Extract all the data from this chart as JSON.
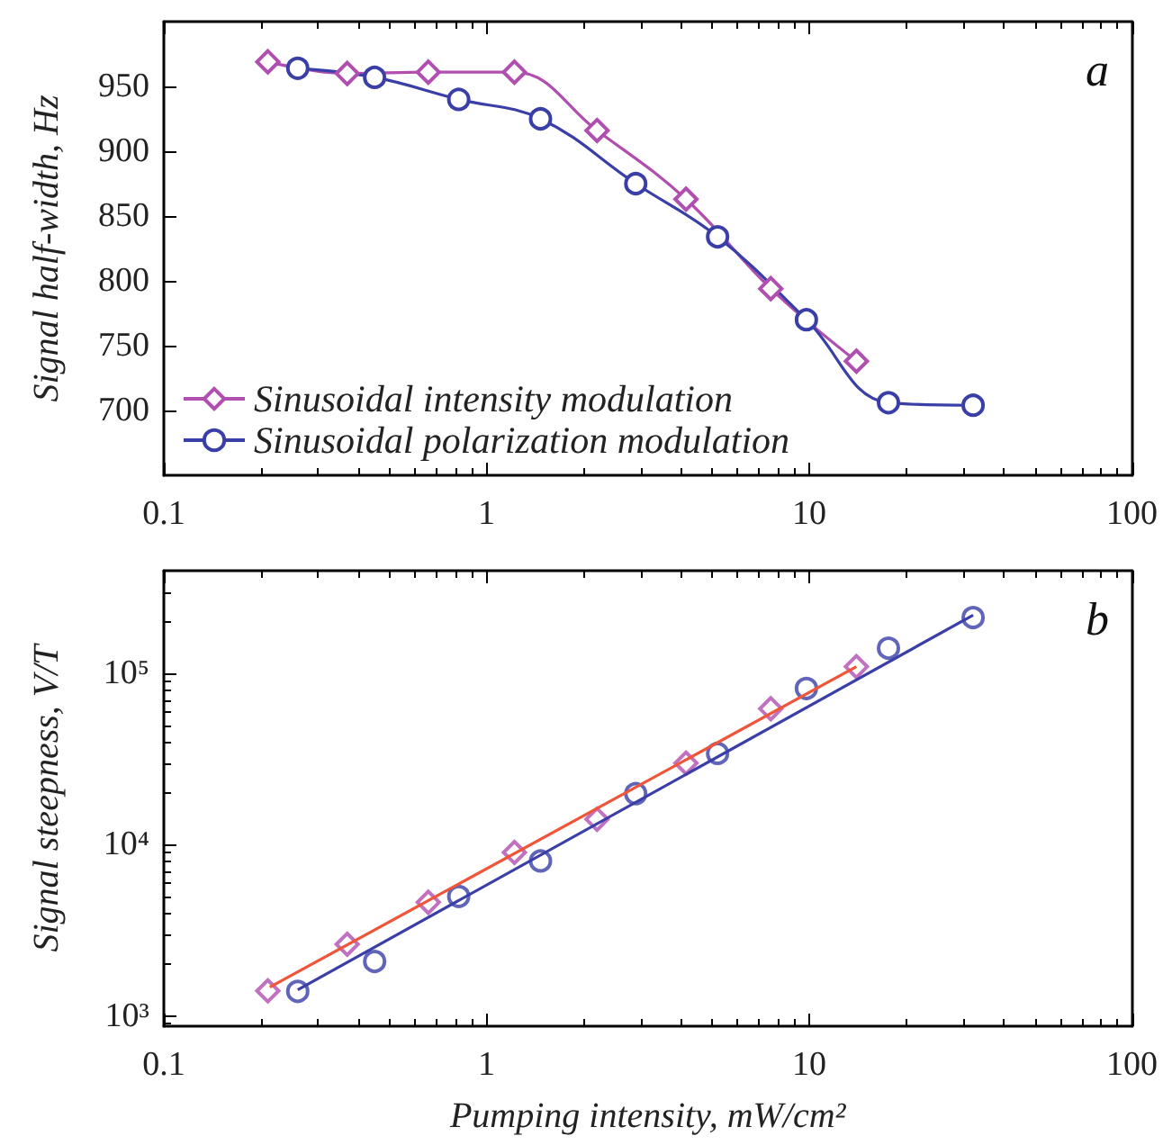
{
  "chart_data": [
    {
      "type": "line",
      "ylabel": "Signal half-width, Hz",
      "annotations": [
        "a"
      ],
      "log": "x",
      "xlim": [
        0.1,
        100
      ],
      "xticks": [
        0.1,
        1,
        10,
        100
      ],
      "ylim": [
        650,
        1000
      ],
      "yticks": [
        700,
        750,
        800,
        850,
        900,
        950
      ],
      "grid": false,
      "legend": "bottom left",
      "line_style": "solid",
      "series": [
        {
          "name": "Sinusoidal intensity modulation",
          "color": "#b04fb0",
          "marker": "diamond",
          "x": [
            0.21,
            0.37,
            0.66,
            1.22,
            2.2,
            4.15,
            7.6,
            14.0
          ],
          "values": [
            969,
            960,
            961,
            961,
            916,
            863,
            794,
            738
          ]
        },
        {
          "name": "Sinusoidal polarization modulation",
          "color": "#3a3fa8",
          "marker": "circle",
          "x": [
            0.26,
            0.45,
            0.82,
            1.47,
            2.9,
            5.2,
            9.8,
            17.6,
            32.2
          ],
          "values": [
            964,
            957,
            940,
            925,
            875,
            834,
            770,
            706,
            704
          ]
        }
      ]
    },
    {
      "type": "scatter",
      "xlabel": "Pumping intensity, mW/cm²",
      "ylabel": "Signal steepness, V/T",
      "annotations": [
        "b"
      ],
      "log": "xy",
      "xlim": [
        0.1,
        100
      ],
      "xticks": [
        0.1,
        1,
        10,
        100
      ],
      "ylim": [
        870,
        400000
      ],
      "yticks": [
        {
          "value": 1000,
          "label": "10³"
        },
        {
          "value": 10000,
          "label": "10⁴"
        },
        {
          "value": 100000,
          "label": "10⁵"
        }
      ],
      "grid": false,
      "legend": false,
      "series": [
        {
          "type": "line",
          "color": "#f0553a",
          "marker": "none",
          "line_style": "solid",
          "x": [
            0.213,
            14.0
          ],
          "values": [
            1470,
            110000
          ]
        },
        {
          "type": "line",
          "color": "#3a3fa8",
          "marker": "none",
          "line_style": "solid",
          "x": [
            0.26,
            32.2
          ],
          "values": [
            1420,
            220000
          ]
        },
        {
          "color": "#b04fb0",
          "marker": "diamond",
          "x": [
            0.21,
            0.37,
            0.66,
            1.22,
            2.2,
            4.15,
            7.6,
            14.0
          ],
          "values": [
            1400,
            2620,
            4610,
            9020,
            14100,
            30000,
            62400,
            110000
          ]
        },
        {
          "color": "#3a3fa8",
          "marker": "circle",
          "x": [
            0.26,
            0.45,
            0.82,
            1.47,
            2.9,
            5.2,
            9.8,
            17.6,
            32.2
          ],
          "values": [
            1390,
            2080,
            4990,
            8040,
            19900,
            34200,
            82000,
            141000,
            213000
          ]
        }
      ]
    }
  ]
}
